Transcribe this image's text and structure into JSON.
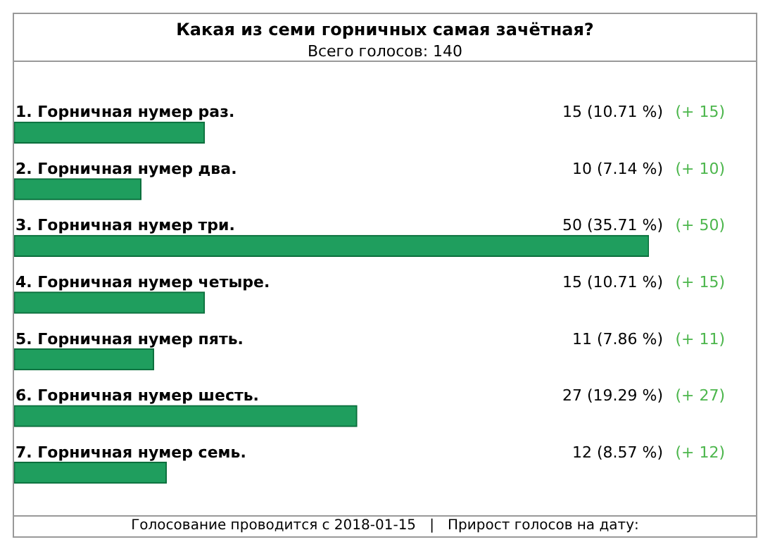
{
  "chart_data": {
    "type": "bar",
    "orientation": "horizontal",
    "title": "Какая из семи горничных самая зачётная?",
    "subtitle": "Всего голосов: 140",
    "categories": [
      "1. Горничная нумер раз.",
      "2. Горничная нумер два.",
      "3. Горничная нумер три.",
      "4. Горничная нумер четыре.",
      "5. Горничная нумер пять.",
      "6. Горничная нумер шесть.",
      "7. Горничная нумер семь."
    ],
    "values": [
      15,
      10,
      50,
      15,
      11,
      27,
      12
    ],
    "color": "#1f9e5e",
    "value_labels": [
      "15 (10.71 %)",
      "10 (7.14 %)",
      "50 (35.71 %)",
      "15 (10.71 %)",
      "11 (7.86 %)",
      "27 (19.29 %)",
      "12 (8.57 %)"
    ],
    "annotations": [
      "(+ 15)",
      "(+ 10)",
      "(+ 50)",
      "(+ 15)",
      "(+ 11)",
      "(+ 27)",
      "(+ 12)",
      "Голосование проводится с 2018-01-15   |   Прирост голосов на дату:"
    ]
  }
}
